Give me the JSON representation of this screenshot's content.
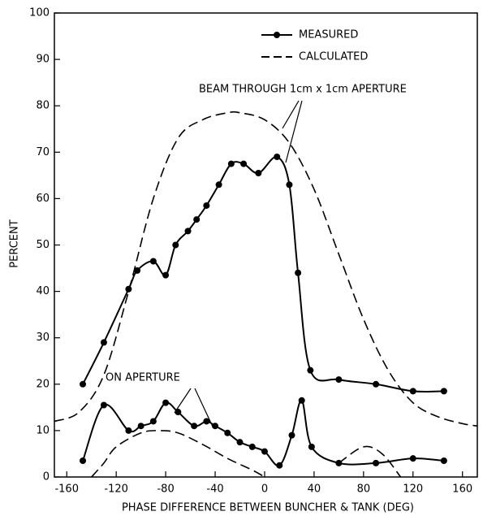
{
  "chart_data": {
    "type": "line",
    "xlabel": "PHASE DIFFERENCE BETWEEN BUNCHER & TANK (DEG)",
    "ylabel": "PERCENT",
    "annotations": [
      "BEAM THROUGH 1cm x 1cm APERTURE",
      "ON APERTURE"
    ],
    "legend": "top",
    "xlim": [
      -170,
      172
    ],
    "ylim": [
      0,
      100
    ],
    "xticks": [
      -160,
      -120,
      -80,
      -40,
      0,
      40,
      80,
      120,
      160
    ],
    "yticks": [
      0,
      10,
      20,
      30,
      40,
      50,
      60,
      70,
      80,
      90,
      100
    ],
    "series": [
      {
        "name": "MEASURED",
        "color": "#000000",
        "style": "solid-markers",
        "x": [
          -147,
          -130,
          -110,
          -103,
          -90,
          -80,
          -72,
          -62,
          -55,
          -47,
          -37,
          -27,
          -17,
          -5,
          10,
          20,
          27,
          37,
          60,
          90,
          120,
          145,
          null,
          -147,
          -130,
          -110,
          -100,
          -90,
          -80,
          -70,
          -57,
          -47,
          -40,
          -30,
          -20,
          -10,
          0,
          12,
          22,
          30,
          38,
          60,
          90,
          120,
          145
        ],
        "values": [
          20,
          29,
          40.5,
          44.5,
          46.5,
          43.5,
          50,
          53,
          55.5,
          58.5,
          63,
          67.5,
          67.5,
          65.5,
          69,
          63,
          44,
          23,
          21,
          20,
          18.5,
          18.5,
          null,
          3.5,
          15.5,
          10,
          11,
          12,
          16,
          14,
          11,
          12,
          11,
          9.5,
          7.5,
          6.5,
          5.5,
          2.5,
          9,
          16.5,
          6.5,
          3,
          3,
          4,
          3.5
        ]
      },
      {
        "name": "CALCULATED",
        "color": "#000000",
        "style": "dashed",
        "x": [
          -170,
          -150,
          -130,
          -110,
          -90,
          -70,
          -50,
          -30,
          -20,
          0,
          20,
          40,
          60,
          80,
          100,
          120,
          140,
          160,
          172,
          null,
          -140,
          -130,
          -120,
          -100,
          -85,
          -70,
          -50,
          -30,
          -10,
          0,
          null,
          60,
          80,
          95,
          110
        ],
        "values": [
          12,
          14,
          22,
          40,
          60,
          73,
          77,
          78.5,
          78.5,
          77,
          72,
          62,
          48,
          34,
          23,
          16,
          13,
          11.5,
          11,
          null,
          0,
          3,
          6.5,
          9.5,
          10,
          9.5,
          7,
          4,
          1.5,
          0,
          null,
          3,
          6.5,
          5,
          0
        ]
      }
    ]
  }
}
